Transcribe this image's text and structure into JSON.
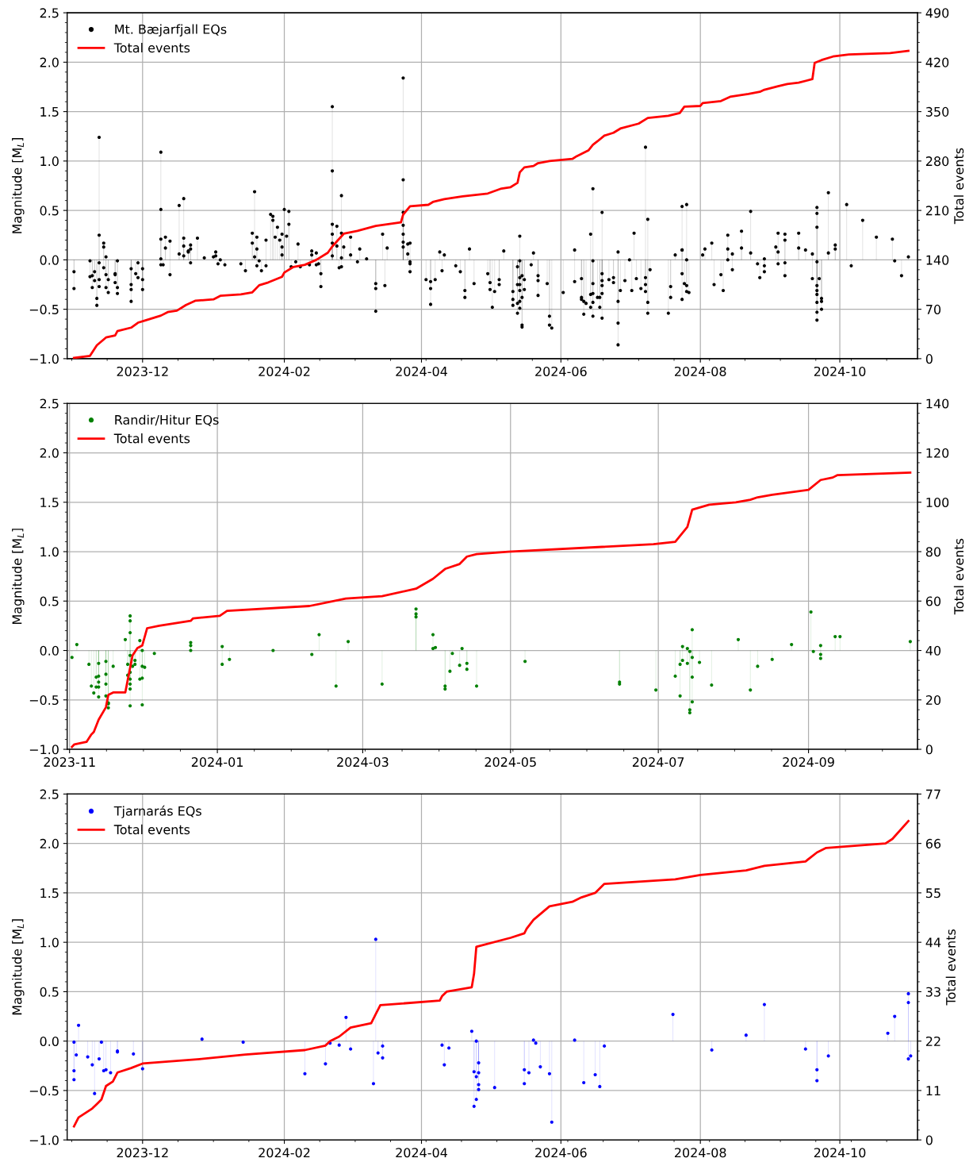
{
  "chart_data": [
    {
      "type": "lollipop",
      "ylabel": "Magnitude [M$_{L}$]",
      "y2label": "Total events",
      "legend": "top left",
      "grid": true,
      "xlim": [
        "2023-10-29",
        "2024-11-04"
      ],
      "xticks": [
        "2023-12",
        "2024-02",
        "2024-04",
        "2024-06",
        "2024-08",
        "2024-10"
      ],
      "ylim": [
        -1.0,
        2.5
      ],
      "yticks": [
        {
          "value": -1.0,
          "label": "−1.0"
        },
        {
          "value": -0.5,
          "label": "−0.5"
        },
        {
          "value": 0.0,
          "label": "0.0"
        },
        {
          "value": 0.5,
          "label": "0.5"
        },
        {
          "value": 1.0,
          "label": "1.0"
        },
        {
          "value": 1.5,
          "label": "1.5"
        },
        {
          "value": 2.0,
          "label": "2.0"
        },
        {
          "value": 2.5,
          "label": "2.5"
        }
      ],
      "y2lim": [
        0,
        490
      ],
      "y2ticks": [
        0,
        70,
        140,
        210,
        280,
        350,
        420,
        490
      ],
      "series": [
        {
          "name": "Mt. Bæjarfjall EQs",
          "marker": "circle",
          "color": "#000000",
          "x": [
            "2023-11-01",
            "2023-11-01",
            "2023-11-08",
            "2023-11-08",
            "2023-11-09",
            "2023-11-09",
            "2023-11-10",
            "2023-11-10",
            "2023-11-11",
            "2023-11-11",
            "2023-11-12",
            "2023-11-12",
            "2023-11-12",
            "2023-11-12",
            "2023-11-12",
            "2023-11-14",
            "2023-11-14",
            "2023-11-14",
            "2023-11-15",
            "2023-11-15",
            "2023-11-15",
            "2023-11-16",
            "2023-11-16",
            "2023-11-19",
            "2023-11-19",
            "2023-11-19",
            "2023-11-20",
            "2023-11-20",
            "2023-11-20",
            "2023-11-26",
            "2023-11-26",
            "2023-11-26",
            "2023-11-26",
            "2023-11-28",
            "2023-11-29",
            "2023-11-29",
            "2023-12-01",
            "2023-12-01",
            "2023-12-01",
            "2023-12-09",
            "2023-12-09",
            "2023-12-09",
            "2023-12-09",
            "2023-12-09",
            "2023-12-10",
            "2023-12-11",
            "2023-12-11",
            "2023-12-13",
            "2023-12-13",
            "2023-12-17",
            "2023-12-17",
            "2023-12-19",
            "2023-12-19",
            "2023-12-19",
            "2023-12-19",
            "2023-12-21",
            "2023-12-21",
            "2023-12-22",
            "2023-12-22",
            "2023-12-22",
            "2023-12-25",
            "2023-12-28",
            "2024-01-01",
            "2024-01-02",
            "2024-01-02",
            "2024-01-03",
            "2024-01-04",
            "2024-01-06",
            "2024-01-13",
            "2024-01-15",
            "2024-01-18",
            "2024-01-19",
            "2024-01-18",
            "2024-01-19",
            "2024-01-20",
            "2024-01-20",
            "2024-01-20",
            "2024-01-21",
            "2024-01-22",
            "2024-01-24",
            "2024-01-24",
            "2024-01-26",
            "2024-01-27",
            "2024-01-27",
            "2024-01-28",
            "2024-01-29",
            "2024-01-30",
            "2024-01-31",
            "2024-01-31",
            "2024-01-31",
            "2024-02-01",
            "2024-02-03",
            "2024-02-03",
            "2024-02-02",
            "2024-02-04",
            "2024-02-07",
            "2024-02-06",
            "2024-02-08",
            "2024-02-12",
            "2024-02-13",
            "2024-02-13",
            "2024-02-15",
            "2024-02-15",
            "2024-02-16",
            "2024-02-17",
            "2024-02-17",
            "2024-02-22",
            "2024-02-22",
            "2024-02-22",
            "2024-02-22",
            "2024-02-22",
            "2024-02-22",
            "2024-02-24",
            "2024-02-24",
            "2024-02-25",
            "2024-02-26",
            "2024-02-26",
            "2024-02-26",
            "2024-02-26",
            "2024-02-27",
            "2024-03-01",
            "2024-03-01",
            "2024-03-04",
            "2024-03-05",
            "2024-03-08",
            "2024-03-12",
            "2024-03-12",
            "2024-03-12",
            "2024-03-15",
            "2024-03-16",
            "2024-03-17",
            "2024-03-24",
            "2024-03-24",
            "2024-03-24",
            "2024-03-24",
            "2024-03-24",
            "2024-03-24",
            "2024-03-24",
            "2024-03-26",
            "2024-03-26",
            "2024-03-27",
            "2024-03-27",
            "2024-03-27",
            "2024-03-27",
            "2024-04-03",
            "2024-04-05",
            "2024-04-05",
            "2024-04-05",
            "2024-04-07",
            "2024-04-09",
            "2024-04-10",
            "2024-04-11",
            "2024-04-16",
            "2024-04-18",
            "2024-04-20",
            "2024-04-20",
            "2024-04-22",
            "2024-04-24",
            "2024-04-30",
            "2024-05-01",
            "2024-05-01",
            "2024-05-02",
            "2024-05-03",
            "2024-05-05",
            "2024-05-05",
            "2024-05-07",
            "2024-05-11",
            "2024-05-11",
            "2024-05-11",
            "2024-05-13",
            "2024-05-13",
            "2024-05-13",
            "2024-05-13",
            "2024-05-14",
            "2024-05-14",
            "2024-05-14",
            "2024-05-14",
            "2024-05-14",
            "2024-05-14",
            "2024-05-14",
            "2024-05-15",
            "2024-05-15",
            "2024-05-15",
            "2024-05-15",
            "2024-05-16",
            "2024-05-16",
            "2024-05-19",
            "2024-05-20",
            "2024-05-22",
            "2024-05-22",
            "2024-05-22",
            "2024-05-26",
            "2024-05-27",
            "2024-05-27",
            "2024-05-28",
            "2024-06-02",
            "2024-06-07",
            "2024-06-07",
            "2024-06-10",
            "2024-06-10",
            "2024-06-10",
            "2024-06-11",
            "2024-06-11",
            "2024-06-12",
            "2024-06-14",
            "2024-06-14",
            "2024-06-14",
            "2024-06-15",
            "2024-06-15",
            "2024-06-15",
            "2024-06-15",
            "2024-06-15",
            "2024-06-15",
            "2024-06-17",
            "2024-06-18",
            "2024-06-18",
            "2024-06-19",
            "2024-06-19",
            "2024-06-19",
            "2024-06-19",
            "2024-06-19",
            "2024-06-19",
            "2024-06-22",
            "2024-06-24",
            "2024-06-24",
            "2024-06-26",
            "2024-06-26",
            "2024-06-26",
            "2024-06-26",
            "2024-06-27",
            "2024-06-29",
            "2024-07-01",
            "2024-07-02",
            "2024-07-03",
            "2024-07-04",
            "2024-07-06",
            "2024-07-08",
            "2024-07-08",
            "2024-07-08",
            "2024-07-08",
            "2024-07-09",
            "2024-07-09",
            "2024-07-09",
            "2024-07-10",
            "2024-07-18",
            "2024-07-19",
            "2024-07-19",
            "2024-07-21",
            "2024-07-24",
            "2024-07-24",
            "2024-07-24",
            "2024-07-24",
            "2024-07-25",
            "2024-07-26",
            "2024-07-26",
            "2024-07-26",
            "2024-07-26",
            "2024-07-24",
            "2024-07-27",
            "2024-08-02",
            "2024-08-03",
            "2024-08-06",
            "2024-08-07",
            "2024-08-10",
            "2024-08-11",
            "2024-08-13",
            "2024-08-13",
            "2024-08-13",
            "2024-08-15",
            "2024-08-15",
            "2024-08-19",
            "2024-08-19",
            "2024-08-23",
            "2024-08-23",
            "2024-08-26",
            "2024-08-27",
            "2024-08-29",
            "2024-08-29",
            "2024-08-29",
            "2024-09-03",
            "2024-09-04",
            "2024-09-04",
            "2024-09-04",
            "2024-09-07",
            "2024-09-07",
            "2024-09-07",
            "2024-09-07",
            "2024-09-13",
            "2024-09-13",
            "2024-09-16",
            "2024-09-19",
            "2024-09-19",
            "2024-09-21",
            "2024-09-21",
            "2024-09-21",
            "2024-09-21",
            "2024-09-21",
            "2024-09-21",
            "2024-09-21",
            "2024-09-21",
            "2024-09-21",
            "2024-09-21",
            "2024-09-22",
            "2024-09-23",
            "2024-09-23",
            "2024-09-23",
            "2024-09-26",
            "2024-09-26",
            "2024-09-29",
            "2024-09-29",
            "2024-10-04",
            "2024-10-06",
            "2024-10-11",
            "2024-10-17",
            "2024-10-24",
            "2024-10-25",
            "2024-10-28",
            "2024-10-31"
          ],
          "values": [
            -0.29,
            -0.12,
            -0.01,
            -0.17,
            -0.16,
            -0.28,
            -0.12,
            -0.21,
            -0.39,
            -0.46,
            1.24,
            0.25,
            -0.03,
            -0.2,
            -0.27,
            0.17,
            0.13,
            -0.08,
            0.03,
            -0.15,
            -0.28,
            -0.2,
            -0.33,
            -0.15,
            -0.14,
            -0.23,
            -0.28,
            -0.34,
            -0.01,
            -0.09,
            -0.3,
            -0.25,
            -0.42,
            -0.14,
            -0.18,
            -0.03,
            -0.09,
            -0.2,
            -0.3,
            1.09,
            0.51,
            0.21,
            0.01,
            -0.05,
            -0.05,
            0.23,
            0.12,
            0.19,
            -0.15,
            0.55,
            0.06,
            0.62,
            0.22,
            0.14,
            0.04,
            0.08,
            0.09,
            0.15,
            0.11,
            -0.03,
            0.22,
            0.02,
            0.03,
            0.08,
            0.04,
            -0.04,
            0.0,
            -0.05,
            -0.04,
            -0.11,
            0.27,
            0.69,
            0.17,
            0.03,
            0.11,
            0.23,
            -0.06,
            -0.01,
            -0.11,
            0.2,
            -0.06,
            0.46,
            0.44,
            0.4,
            0.23,
            0.33,
            0.2,
            0.26,
            0.13,
            0.05,
            0.51,
            0.49,
            0.36,
            0.24,
            -0.07,
            0.16,
            -0.02,
            -0.07,
            -0.05,
            0.05,
            0.09,
            -0.05,
            0.07,
            -0.04,
            -0.14,
            -0.27,
            1.55,
            0.9,
            0.36,
            0.26,
            0.17,
            0.04,
            0.34,
            0.14,
            -0.08,
            0.65,
            0.27,
            0.02,
            -0.07,
            0.13,
            0.23,
            0.05,
            -0.02,
            0.11,
            0.01,
            -0.24,
            -0.52,
            -0.29,
            0.26,
            -0.26,
            0.12,
            1.84,
            0.81,
            0.48,
            0.35,
            0.26,
            0.18,
            0.13,
            0.06,
            0.16,
            0.17,
            -0.04,
            -0.12,
            -0.02,
            -0.2,
            -0.22,
            -0.45,
            -0.29,
            -0.2,
            0.08,
            -0.11,
            0.05,
            -0.06,
            -0.12,
            -0.31,
            -0.38,
            0.11,
            -0.24,
            -0.14,
            -0.23,
            -0.3,
            -0.48,
            -0.32,
            -0.2,
            -0.25,
            0.09,
            -0.32,
            -0.4,
            -0.46,
            -0.07,
            -0.25,
            -0.44,
            -0.54,
            0.24,
            -0.01,
            -0.18,
            -0.25,
            -0.31,
            -0.42,
            -0.49,
            -0.66,
            -0.68,
            -0.38,
            -0.16,
            -0.2,
            -0.3,
            -0.05,
            0.07,
            -0.16,
            -0.21,
            -0.36,
            -0.24,
            -0.66,
            -0.57,
            -0.69,
            -0.33,
            0.1,
            -0.22,
            -0.19,
            -0.4,
            -0.38,
            -0.55,
            -0.42,
            -0.44,
            -0.35,
            -0.48,
            0.26,
            0.72,
            -0.01,
            -0.57,
            -0.34,
            -0.24,
            -0.43,
            -0.38,
            -0.38,
            -0.48,
            0.48,
            -0.14,
            -0.21,
            -0.26,
            -0.34,
            -0.59,
            -0.2,
            -0.23,
            -0.18,
            -0.42,
            0.08,
            -0.64,
            -0.86,
            -0.31,
            -0.21,
            0.0,
            -0.31,
            0.27,
            -0.19,
            -0.29,
            1.14,
            -0.18,
            -0.25,
            -0.32,
            0.41,
            -0.43,
            -0.54,
            -0.1,
            -0.54,
            -0.38,
            -0.27,
            0.05,
            0.1,
            -0.14,
            0.54,
            0.1,
            -0.24,
            0.56,
            0.0,
            -0.26,
            -0.32,
            -0.4,
            -0.33,
            0.05,
            0.11,
            0.17,
            -0.25,
            -0.15,
            -0.31,
            0.25,
            0.11,
            0.0,
            0.06,
            -0.1,
            0.29,
            0.12,
            0.49,
            0.07,
            -0.04,
            -0.18,
            0.01,
            -0.06,
            -0.12,
            0.13,
            0.08,
            -0.04,
            0.27,
            0.26,
            0.2,
            -0.03,
            -0.16,
            0.12,
            0.27,
            0.1,
            0.06,
            -0.19,
            0.53,
            0.47,
            0.33,
            -0.02,
            -0.31,
            -0.35,
            -0.43,
            -0.53,
            -0.61,
            -0.26,
            -0.19,
            -0.5,
            -0.42,
            -0.39,
            0.68,
            0.07,
            0.15,
            0.11,
            0.56,
            -0.06,
            0.4,
            0.23,
            0.21,
            -0.01,
            -0.16,
            0.03
          ]
        },
        {
          "name": "Total events",
          "type": "line",
          "axis": "y2",
          "color": "#ff0000",
          "x": [
            "2023-11-01",
            "2023-11-08",
            "2023-11-11",
            "2023-11-15",
            "2023-11-19",
            "2023-11-20",
            "2023-11-26",
            "2023-11-29",
            "2023-12-02",
            "2023-12-09",
            "2023-12-12",
            "2023-12-16",
            "2023-12-20",
            "2023-12-24",
            "2024-01-01",
            "2024-01-04",
            "2024-01-13",
            "2024-01-18",
            "2024-01-21",
            "2024-01-25",
            "2024-01-31",
            "2024-02-01",
            "2024-02-05",
            "2024-02-10",
            "2024-02-15",
            "2024-02-20",
            "2024-02-22",
            "2024-02-27",
            "2024-03-04",
            "2024-03-12",
            "2024-03-23",
            "2024-03-24",
            "2024-03-27",
            "2024-04-04",
            "2024-04-06",
            "2024-04-11",
            "2024-04-19",
            "2024-04-30",
            "2024-05-06",
            "2024-05-10",
            "2024-05-13",
            "2024-05-14",
            "2024-05-16",
            "2024-05-20",
            "2024-05-22",
            "2024-05-27",
            "2024-06-06",
            "2024-06-08",
            "2024-06-13",
            "2024-06-15",
            "2024-06-17",
            "2024-06-20",
            "2024-06-24",
            "2024-06-27",
            "2024-07-05",
            "2024-07-09",
            "2024-07-18",
            "2024-07-23",
            "2024-07-25",
            "2024-08-01",
            "2024-08-02",
            "2024-08-10",
            "2024-08-14",
            "2024-08-22",
            "2024-08-27",
            "2024-08-29",
            "2024-09-04",
            "2024-09-08",
            "2024-09-13",
            "2024-09-19",
            "2024-09-20",
            "2024-09-23",
            "2024-09-28",
            "2024-10-05",
            "2024-10-23",
            "2024-10-31"
          ],
          "values": [
            1,
            4,
            19,
            30,
            33,
            39,
            44,
            51,
            54,
            61,
            66,
            68,
            76,
            82,
            84,
            89,
            91,
            94,
            104,
            108,
            116,
            122,
            130,
            133,
            140,
            150,
            159,
            177,
            181,
            188,
            193,
            204,
            216,
            218,
            222,
            226,
            230,
            234,
            241,
            243,
            249,
            264,
            271,
            273,
            277,
            280,
            283,
            287,
            295,
            303,
            308,
            316,
            320,
            326,
            333,
            341,
            344,
            348,
            357,
            358,
            362,
            365,
            371,
            375,
            378,
            381,
            386,
            389,
            391,
            396,
            419,
            423,
            428,
            431,
            433,
            436
          ]
        }
      ]
    },
    {
      "type": "lollipop",
      "ylabel": "Magnitude [M$_{L}$]",
      "y2label": "Total events",
      "legend": "top left",
      "grid": true,
      "xlim": [
        "2023-10-31",
        "2024-10-16"
      ],
      "xticks": [
        "2023-11",
        "2024-01",
        "2024-03",
        "2024-05",
        "2024-07",
        "2024-09"
      ],
      "ylim": [
        -1.0,
        2.5
      ],
      "yticks": [
        {
          "value": -1.0,
          "label": "−1.0"
        },
        {
          "value": -0.5,
          "label": "−0.5"
        },
        {
          "value": 0.0,
          "label": "0.0"
        },
        {
          "value": 0.5,
          "label": "0.5"
        },
        {
          "value": 1.0,
          "label": "1.0"
        },
        {
          "value": 1.5,
          "label": "1.5"
        },
        {
          "value": 2.0,
          "label": "2.0"
        },
        {
          "value": 2.5,
          "label": "2.5"
        }
      ],
      "y2lim": [
        0,
        140
      ],
      "y2ticks": [
        0,
        20,
        40,
        60,
        80,
        100,
        120,
        140
      ],
      "series": [
        {
          "name": "Randir/Hitur EQs",
          "marker": "circle",
          "color": "#008000",
          "x": [
            "2023-11-02",
            "2023-11-04",
            "2023-11-09",
            "2023-11-10",
            "2023-11-11",
            "2023-11-12",
            "2023-11-12",
            "2023-11-13",
            "2023-11-13",
            "2023-11-13",
            "2023-11-13",
            "2023-11-13",
            "2023-11-16",
            "2023-11-16",
            "2023-11-16",
            "2023-11-16",
            "2023-11-17",
            "2023-11-17",
            "2023-11-17",
            "2023-11-19",
            "2023-11-24",
            "2023-11-25",
            "2023-11-25",
            "2023-11-26",
            "2023-11-26",
            "2023-11-26",
            "2023-11-26",
            "2023-11-26",
            "2023-11-26",
            "2023-11-26",
            "2023-11-26",
            "2023-11-26",
            "2023-11-27",
            "2023-11-28",
            "2023-11-28",
            "2023-11-30",
            "2023-11-30",
            "2023-12-01",
            "2023-12-01",
            "2023-12-01",
            "2023-12-01",
            "2023-12-02",
            "2023-12-06",
            "2023-12-21",
            "2023-12-21",
            "2023-12-21",
            "2024-01-03",
            "2024-01-03",
            "2024-01-06",
            "2024-01-24",
            "2024-02-09",
            "2024-02-12",
            "2024-02-19",
            "2024-02-24",
            "2024-03-09",
            "2024-03-23",
            "2024-03-23",
            "2024-03-23",
            "2024-03-30",
            "2024-03-30",
            "2024-03-31",
            "2024-04-04",
            "2024-04-04",
            "2024-04-06",
            "2024-04-07",
            "2024-04-10",
            "2024-04-11",
            "2024-04-13",
            "2024-04-13",
            "2024-04-17",
            "2024-05-07",
            "2024-06-15",
            "2024-06-15",
            "2024-06-30",
            "2024-07-08",
            "2024-07-10",
            "2024-07-10",
            "2024-07-11",
            "2024-07-11",
            "2024-07-13",
            "2024-07-13",
            "2024-07-14",
            "2024-07-14",
            "2024-07-14",
            "2024-07-15",
            "2024-07-15",
            "2024-07-15",
            "2024-07-15",
            "2024-07-18",
            "2024-07-23",
            "2024-08-03",
            "2024-08-08",
            "2024-08-11",
            "2024-08-17",
            "2024-08-25",
            "2024-09-02",
            "2024-09-03",
            "2024-09-06",
            "2024-09-06",
            "2024-09-06",
            "2024-09-12",
            "2024-09-14",
            "2024-10-13"
          ],
          "values": [
            -0.07,
            0.06,
            -0.14,
            -0.36,
            -0.43,
            -0.37,
            -0.27,
            -0.32,
            -0.26,
            -0.37,
            -0.47,
            -0.13,
            -0.11,
            -0.24,
            -0.34,
            -0.46,
            -0.54,
            -0.58,
            -0.53,
            -0.16,
            0.11,
            -0.25,
            -0.14,
            0.18,
            -0.56,
            -0.39,
            -0.05,
            0.35,
            0.3,
            -0.34,
            -0.22,
            -0.29,
            -0.16,
            -0.1,
            -0.14,
            -0.29,
            0.1,
            -0.55,
            -0.28,
            0.0,
            -0.16,
            -0.17,
            -0.03,
            0.0,
            0.05,
            0.08,
            0.04,
            -0.14,
            -0.09,
            0.0,
            -0.04,
            0.16,
            -0.36,
            0.09,
            -0.34,
            0.42,
            0.37,
            0.34,
            0.16,
            0.02,
            0.03,
            -0.36,
            -0.39,
            -0.21,
            -0.03,
            -0.15,
            0.02,
            -0.13,
            -0.19,
            -0.36,
            -0.11,
            -0.34,
            -0.32,
            -0.4,
            -0.26,
            -0.46,
            -0.14,
            0.04,
            -0.1,
            0.02,
            -0.13,
            -0.01,
            -0.6,
            -0.63,
            0.21,
            -0.07,
            -0.27,
            -0.52,
            -0.12,
            -0.35,
            0.11,
            -0.4,
            -0.16,
            -0.09,
            0.06,
            0.39,
            -0.01,
            0.05,
            -0.04,
            -0.08,
            0.14,
            0.14,
            0.09
          ]
        },
        {
          "name": "Total events",
          "type": "line",
          "axis": "y2",
          "color": "#ff0000",
          "x": [
            "2023-11-02",
            "2023-11-03",
            "2023-11-08",
            "2023-11-10",
            "2023-11-11",
            "2023-11-13",
            "2023-11-16",
            "2023-11-17",
            "2023-11-19",
            "2023-11-24",
            "2023-11-25",
            "2023-11-27",
            "2023-11-29",
            "2023-12-01",
            "2023-12-03",
            "2023-12-08",
            "2023-12-21",
            "2023-12-22",
            "2024-01-02",
            "2024-01-05",
            "2024-02-08",
            "2024-02-23",
            "2024-03-09",
            "2024-03-23",
            "2024-03-30",
            "2024-04-04",
            "2024-04-10",
            "2024-04-13",
            "2024-04-17",
            "2024-04-30",
            "2024-06-29",
            "2024-07-08",
            "2024-07-13",
            "2024-07-15",
            "2024-07-22",
            "2024-08-02",
            "2024-08-08",
            "2024-08-11",
            "2024-08-17",
            "2024-09-01",
            "2024-09-06",
            "2024-09-11",
            "2024-09-13",
            "2024-10-13"
          ],
          "values": [
            1,
            2,
            3,
            6,
            7,
            12,
            17,
            22,
            23,
            23,
            28,
            38,
            41,
            42,
            49,
            50,
            52,
            53,
            54,
            56,
            58,
            61,
            62,
            65,
            69,
            73,
            75,
            78,
            79,
            80,
            83,
            84,
            90,
            97,
            99,
            100,
            101,
            102,
            103,
            105,
            109,
            110,
            111,
            112
          ]
        }
      ]
    },
    {
      "type": "lollipop",
      "ylabel": "Magnitude [M$_{L}$]",
      "y2label": "Total events",
      "legend": "top left",
      "grid": true,
      "xlim": [
        "2023-10-29",
        "2024-11-04"
      ],
      "xticks": [
        "2023-12",
        "2024-02",
        "2024-04",
        "2024-06",
        "2024-08",
        "2024-10"
      ],
      "ylim": [
        -1.0,
        2.5
      ],
      "yticks": [
        {
          "value": -1.0,
          "label": "−1.0"
        },
        {
          "value": -0.5,
          "label": "−0.5"
        },
        {
          "value": 0.0,
          "label": "0.0"
        },
        {
          "value": 0.5,
          "label": "0.5"
        },
        {
          "value": 1.0,
          "label": "1.0"
        },
        {
          "value": 1.5,
          "label": "1.5"
        },
        {
          "value": 2.0,
          "label": "2.0"
        },
        {
          "value": 2.5,
          "label": "2.5"
        }
      ],
      "y2lim": [
        0,
        77
      ],
      "y2ticks": [
        0,
        11,
        22,
        33,
        44,
        55,
        66,
        77
      ],
      "series": [
        {
          "name": "Tjarnarás EQs",
          "marker": "circle",
          "color": "#0000ff",
          "x": [
            "2023-11-01",
            "2023-11-01",
            "2023-11-01",
            "2023-11-02",
            "2023-11-03",
            "2023-11-07",
            "2023-11-09",
            "2023-11-10",
            "2023-11-12",
            "2023-11-13",
            "2023-11-14",
            "2023-11-15",
            "2023-11-17",
            "2023-11-20",
            "2023-11-20",
            "2023-11-27",
            "2023-12-01",
            "2023-12-27",
            "2024-01-14",
            "2024-02-10",
            "2024-02-19",
            "2024-02-21",
            "2024-02-25",
            "2024-02-28",
            "2024-03-01",
            "2024-03-11",
            "2024-03-12",
            "2024-03-13",
            "2024-03-15",
            "2024-03-15",
            "2024-04-10",
            "2024-04-11",
            "2024-04-13",
            "2024-04-23",
            "2024-04-24",
            "2024-04-24",
            "2024-04-25",
            "2024-04-25",
            "2024-04-25",
            "2024-04-26",
            "2024-04-26",
            "2024-04-26",
            "2024-04-26",
            "2024-05-03",
            "2024-05-16",
            "2024-05-16",
            "2024-05-18",
            "2024-05-20",
            "2024-05-21",
            "2024-05-23",
            "2024-05-27",
            "2024-05-28",
            "2024-06-07",
            "2024-06-11",
            "2024-06-16",
            "2024-06-18",
            "2024-06-20",
            "2024-07-20",
            "2024-08-06",
            "2024-08-21",
            "2024-08-29",
            "2024-09-16",
            "2024-09-21",
            "2024-09-21",
            "2024-09-26",
            "2024-10-22",
            "2024-10-25",
            "2024-10-31",
            "2024-10-31",
            "2024-10-31",
            "2024-11-01"
          ],
          "values": [
            -0.3,
            -0.39,
            -0.01,
            -0.14,
            0.16,
            -0.16,
            -0.24,
            -0.53,
            -0.18,
            -0.01,
            -0.3,
            -0.29,
            -0.32,
            -0.1,
            -0.11,
            -0.13,
            -0.28,
            0.02,
            -0.01,
            -0.33,
            -0.23,
            -0.02,
            -0.04,
            0.24,
            -0.08,
            -0.43,
            1.03,
            -0.12,
            -0.05,
            -0.17,
            -0.04,
            -0.24,
            -0.07,
            0.1,
            -0.31,
            -0.66,
            -0.59,
            0.0,
            -0.36,
            -0.32,
            -0.44,
            -0.49,
            -0.22,
            -0.47,
            -0.43,
            -0.29,
            -0.32,
            0.01,
            -0.02,
            -0.26,
            -0.33,
            -0.82,
            0.01,
            -0.42,
            -0.34,
            -0.46,
            -0.05,
            0.27,
            -0.09,
            0.06,
            0.37,
            -0.08,
            -0.29,
            -0.4,
            -0.15,
            0.08,
            0.25,
            0.39,
            0.48,
            -0.18,
            -0.15
          ]
        },
        {
          "name": "Total events",
          "type": "line",
          "axis": "y2",
          "color": "#ff0000",
          "x": [
            "2023-11-01",
            "2023-11-03",
            "2023-11-09",
            "2023-11-11",
            "2023-11-13",
            "2023-11-15",
            "2023-11-18",
            "2023-11-20",
            "2023-11-26",
            "2023-12-01",
            "2023-12-26",
            "2024-01-15",
            "2024-02-10",
            "2024-02-19",
            "2024-02-21",
            "2024-02-25",
            "2024-03-01",
            "2024-03-10",
            "2024-03-12",
            "2024-03-14",
            "2024-04-09",
            "2024-04-10",
            "2024-04-12",
            "2024-04-23",
            "2024-04-24",
            "2024-04-25",
            "2024-05-10",
            "2024-05-16",
            "2024-05-17",
            "2024-05-20",
            "2024-05-27",
            "2024-06-06",
            "2024-06-10",
            "2024-06-16",
            "2024-06-20",
            "2024-07-21",
            "2024-08-01",
            "2024-08-21",
            "2024-08-29",
            "2024-09-16",
            "2024-09-21",
            "2024-09-25",
            "2024-10-21",
            "2024-10-24",
            "2024-10-31"
          ],
          "values": [
            3,
            5,
            7,
            8,
            9,
            12,
            13,
            15,
            16,
            17,
            18,
            19,
            20,
            21,
            22,
            23,
            25,
            26,
            28,
            30,
            31,
            32,
            33,
            34,
            37,
            43,
            45,
            46,
            47,
            49,
            52,
            53,
            54,
            55,
            57,
            58,
            59,
            60,
            61,
            62,
            64,
            65,
            66,
            67,
            71
          ]
        }
      ]
    }
  ]
}
